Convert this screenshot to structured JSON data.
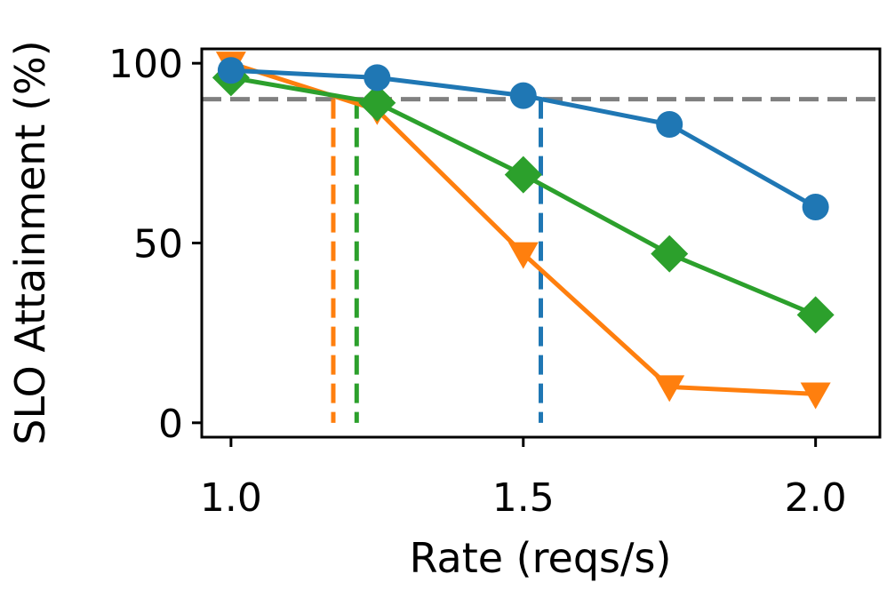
{
  "chart_data": {
    "type": "line",
    "title": "",
    "xlabel": "Rate (reqs/s)",
    "ylabel": "SLO Attainment (%)",
    "xlim": [
      0.95,
      2.11
    ],
    "ylim": [
      -4,
      104
    ],
    "xticks": [
      1.0,
      1.5,
      2.0
    ],
    "xtick_labels": [
      "1.0",
      "1.5",
      "2.0"
    ],
    "yticks": [
      0,
      50,
      100
    ],
    "ytick_labels": [
      "0",
      "50",
      "100"
    ],
    "grid": false,
    "legend": "none",
    "x": [
      1.0,
      1.25,
      1.5,
      1.75,
      2.0
    ],
    "series": [
      {
        "name": "series-orange",
        "color": "#ff7f0e",
        "marker": "triangle-down",
        "values": [
          100,
          87,
          47,
          10,
          8
        ]
      },
      {
        "name": "series-green",
        "color": "#2ca02c",
        "marker": "diamond",
        "values": [
          96,
          89,
          69,
          47,
          30
        ]
      },
      {
        "name": "series-blue",
        "color": "#1f77b4",
        "marker": "circle",
        "values": [
          98,
          96,
          91,
          83,
          60
        ]
      }
    ],
    "reference_line": {
      "y": 90,
      "color": "#808080",
      "style": "dashed"
    },
    "threshold_markers": [
      {
        "series": "series-orange",
        "x": 1.175,
        "color": "#ff7f0e"
      },
      {
        "series": "series-green",
        "x": 1.215,
        "color": "#2ca02c"
      },
      {
        "series": "series-blue",
        "x": 1.53,
        "color": "#1f77b4"
      }
    ]
  }
}
